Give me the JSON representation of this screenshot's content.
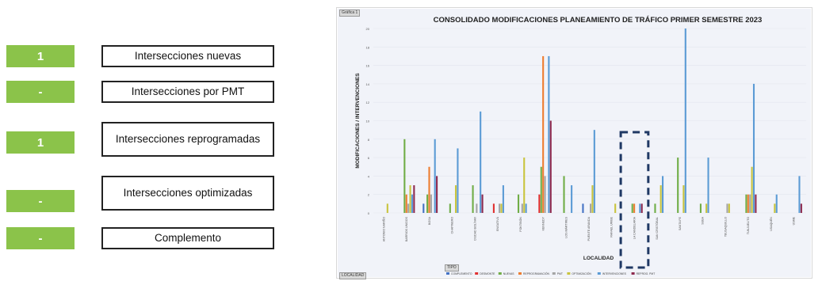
{
  "panel": {
    "items": [
      {
        "value": "1",
        "label": "Intersecciones nuevas"
      },
      {
        "value": "-",
        "label": "Intersecciones por PMT"
      },
      {
        "value": "1",
        "label": "Intersecciones reprogramadas"
      },
      {
        "value": "-",
        "label": "Intersecciones optimizadas"
      },
      {
        "value": "-",
        "label": "Complemento"
      }
    ]
  },
  "chart_tags": {
    "top_left": "Gráfica 1",
    "filter": "TIPO",
    "bottom_left": "LOCALIDAD"
  },
  "chart_data": {
    "type": "bar",
    "title": "CONSOLIDADO MODIFICACIONES PLANEAMIENTO DE TRÁFICO PRIMER SEMESTRE 2023",
    "xlabel": "LOCALIDAD",
    "ylabel": "MODIFICACIONES / INTERVENCIONES",
    "ylim": [
      0,
      20
    ],
    "yticks": [
      0,
      2,
      4,
      6,
      8,
      10,
      12,
      14,
      16,
      18,
      20
    ],
    "grid": true,
    "legend_position": "bottom",
    "highlight_category": "LA CANDELARIA",
    "categories": [
      "ANTONIO NARIÑO",
      "BARRIOS UNIDOS",
      "BOSA",
      "CHAPINERO",
      "CIUDAD BOLÍVAR",
      "ENGATIVÁ",
      "FONTIBÓN",
      "KENNEDY",
      "LOS MÁRTIRES",
      "PUENTE ARANDA",
      "RAFAEL URIBE",
      "LA CANDELARIA",
      "SAN CRISTÓBAL",
      "SANTA FE",
      "SUBA",
      "TEUSAQUILLO",
      "TUNJUELITO",
      "USAQUÉN",
      "USME"
    ],
    "series": [
      {
        "name": "COMPLEMENTO",
        "color": "#4472c4",
        "values": [
          0,
          0,
          1,
          0,
          0,
          0,
          0,
          0,
          0,
          1,
          0,
          0,
          0,
          0,
          0,
          0,
          0,
          0,
          0
        ]
      },
      {
        "name": "DESMONTE",
        "color": "#e03030",
        "values": [
          0,
          0,
          0,
          0,
          0,
          1,
          0,
          2,
          0,
          0,
          0,
          0,
          0,
          0,
          0,
          0,
          0,
          0,
          0
        ]
      },
      {
        "name": "NUEVAS",
        "color": "#70ad47",
        "values": [
          0,
          8,
          2,
          1,
          3,
          0,
          2,
          5,
          4,
          0,
          0,
          1,
          1,
          6,
          1,
          0,
          2,
          0,
          0
        ]
      },
      {
        "name": "REPROGRAMACIÓN",
        "color": "#ed7d31",
        "values": [
          0,
          2,
          5,
          0,
          0,
          0,
          0,
          17,
          0,
          0,
          0,
          1,
          0,
          0,
          0,
          0,
          2,
          0,
          0
        ]
      },
      {
        "name": "PMT",
        "color": "#a5a5a5",
        "values": [
          0,
          1,
          2,
          0,
          1,
          1,
          1,
          4,
          0,
          1,
          0,
          0,
          0,
          0,
          0,
          1,
          2,
          0,
          0
        ]
      },
      {
        "name": "OPTIMIZACIÓN",
        "color": "#c9c43e",
        "values": [
          1,
          3,
          0,
          3,
          0,
          1,
          6,
          0,
          0,
          3,
          1,
          0,
          3,
          3,
          1,
          1,
          5,
          1,
          0
        ]
      },
      {
        "name": "INTERVENCIONES",
        "color": "#5b9bd5",
        "values": [
          0,
          2,
          8,
          7,
          11,
          3,
          1,
          17,
          3,
          9,
          0,
          1,
          4,
          20,
          6,
          0,
          14,
          2,
          4
        ]
      },
      {
        "name": "REPROG. PMT",
        "color": "#8e2a4e",
        "values": [
          0,
          3,
          4,
          0,
          2,
          0,
          0,
          10,
          0,
          0,
          0,
          1,
          0,
          0,
          0,
          0,
          2,
          0,
          1
        ]
      }
    ]
  }
}
